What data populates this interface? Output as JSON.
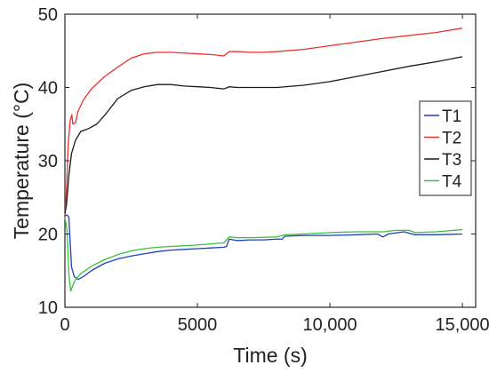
{
  "chart_data": {
    "type": "line",
    "title": "",
    "xlabel": "Time (s)",
    "ylabel": "Temperature (°C)",
    "xlim": [
      0,
      15500
    ],
    "ylim": [
      10,
      50
    ],
    "xticks": [
      0,
      5000,
      10000,
      15000
    ],
    "xtick_labels": [
      "0",
      "5000",
      "10,000",
      "15,000"
    ],
    "yticks": [
      10,
      20,
      30,
      40,
      50
    ],
    "ytick_labels": [
      "10",
      "20",
      "30",
      "40",
      "50"
    ],
    "grid": false,
    "legend_position": "right",
    "series": [
      {
        "name": "T1",
        "color": "#1f3fbf",
        "points": [
          [
            0,
            22.5
          ],
          [
            80,
            22.6
          ],
          [
            150,
            22.3
          ],
          [
            250,
            15.5
          ],
          [
            350,
            14.2
          ],
          [
            500,
            13.8
          ],
          [
            700,
            14.2
          ],
          [
            1000,
            15.0
          ],
          [
            1500,
            16.0
          ],
          [
            2000,
            16.6
          ],
          [
            2500,
            17.0
          ],
          [
            3000,
            17.3
          ],
          [
            3500,
            17.6
          ],
          [
            4000,
            17.8
          ],
          [
            4500,
            17.9
          ],
          [
            5000,
            18.0
          ],
          [
            5500,
            18.1
          ],
          [
            6000,
            18.2
          ],
          [
            6100,
            18.3
          ],
          [
            6200,
            19.3
          ],
          [
            6500,
            19.1
          ],
          [
            7000,
            19.2
          ],
          [
            7500,
            19.2
          ],
          [
            8000,
            19.3
          ],
          [
            8200,
            19.3
          ],
          [
            8300,
            19.7
          ],
          [
            9000,
            19.8
          ],
          [
            10000,
            19.8
          ],
          [
            11000,
            19.9
          ],
          [
            11800,
            20.0
          ],
          [
            12000,
            19.6
          ],
          [
            12200,
            20.0
          ],
          [
            12800,
            20.3
          ],
          [
            13200,
            19.9
          ],
          [
            14000,
            19.9
          ],
          [
            15000,
            20.0
          ]
        ]
      },
      {
        "name": "T2",
        "color": "#e8322e",
        "points": [
          [
            0,
            22.5
          ],
          [
            60,
            26.0
          ],
          [
            120,
            32.0
          ],
          [
            200,
            35.5
          ],
          [
            260,
            36.3
          ],
          [
            300,
            35.0
          ],
          [
            400,
            35.2
          ],
          [
            500,
            36.8
          ],
          [
            700,
            38.3
          ],
          [
            1000,
            39.8
          ],
          [
            1500,
            41.5
          ],
          [
            2000,
            42.8
          ],
          [
            2500,
            44.0
          ],
          [
            3000,
            44.6
          ],
          [
            3500,
            44.8
          ],
          [
            4000,
            44.8
          ],
          [
            4500,
            44.7
          ],
          [
            5000,
            44.6
          ],
          [
            5500,
            44.5
          ],
          [
            6000,
            44.3
          ],
          [
            6200,
            44.9
          ],
          [
            6500,
            44.9
          ],
          [
            7000,
            44.8
          ],
          [
            7500,
            44.8
          ],
          [
            8000,
            44.9
          ],
          [
            9000,
            45.2
          ],
          [
            10000,
            45.7
          ],
          [
            11000,
            46.2
          ],
          [
            12000,
            46.7
          ],
          [
            13000,
            47.1
          ],
          [
            14000,
            47.5
          ],
          [
            15000,
            48.1
          ]
        ]
      },
      {
        "name": "T3",
        "color": "#1a1a1a",
        "points": [
          [
            0,
            22.8
          ],
          [
            60,
            24.0
          ],
          [
            150,
            28.0
          ],
          [
            250,
            31.0
          ],
          [
            400,
            32.8
          ],
          [
            600,
            34.0
          ],
          [
            900,
            34.4
          ],
          [
            1200,
            35.0
          ],
          [
            1500,
            36.2
          ],
          [
            2000,
            38.5
          ],
          [
            2500,
            39.6
          ],
          [
            3000,
            40.1
          ],
          [
            3500,
            40.4
          ],
          [
            4000,
            40.4
          ],
          [
            4500,
            40.2
          ],
          [
            5000,
            40.1
          ],
          [
            5500,
            40.0
          ],
          [
            6000,
            39.8
          ],
          [
            6200,
            40.1
          ],
          [
            6500,
            40.0
          ],
          [
            7000,
            40.0
          ],
          [
            8000,
            40.0
          ],
          [
            9000,
            40.3
          ],
          [
            10000,
            40.8
          ],
          [
            11000,
            41.5
          ],
          [
            12000,
            42.2
          ],
          [
            13000,
            42.9
          ],
          [
            14000,
            43.5
          ],
          [
            15000,
            44.2
          ]
        ]
      },
      {
        "name": "T4",
        "color": "#35c43d",
        "points": [
          [
            0,
            22.3
          ],
          [
            80,
            20.5
          ],
          [
            150,
            14.5
          ],
          [
            220,
            12.2
          ],
          [
            300,
            13.0
          ],
          [
            400,
            13.8
          ],
          [
            600,
            14.6
          ],
          [
            1000,
            15.6
          ],
          [
            1500,
            16.5
          ],
          [
            2000,
            17.2
          ],
          [
            2500,
            17.7
          ],
          [
            3000,
            18.0
          ],
          [
            3500,
            18.2
          ],
          [
            4000,
            18.3
          ],
          [
            5000,
            18.5
          ],
          [
            6000,
            18.8
          ],
          [
            6200,
            19.6
          ],
          [
            6500,
            19.5
          ],
          [
            7000,
            19.5
          ],
          [
            8000,
            19.6
          ],
          [
            8300,
            19.9
          ],
          [
            9000,
            20.0
          ],
          [
            10000,
            20.2
          ],
          [
            11000,
            20.3
          ],
          [
            12000,
            20.3
          ],
          [
            12500,
            20.5
          ],
          [
            13000,
            20.5
          ],
          [
            13200,
            20.2
          ],
          [
            14000,
            20.3
          ],
          [
            15000,
            20.6
          ]
        ]
      }
    ]
  }
}
